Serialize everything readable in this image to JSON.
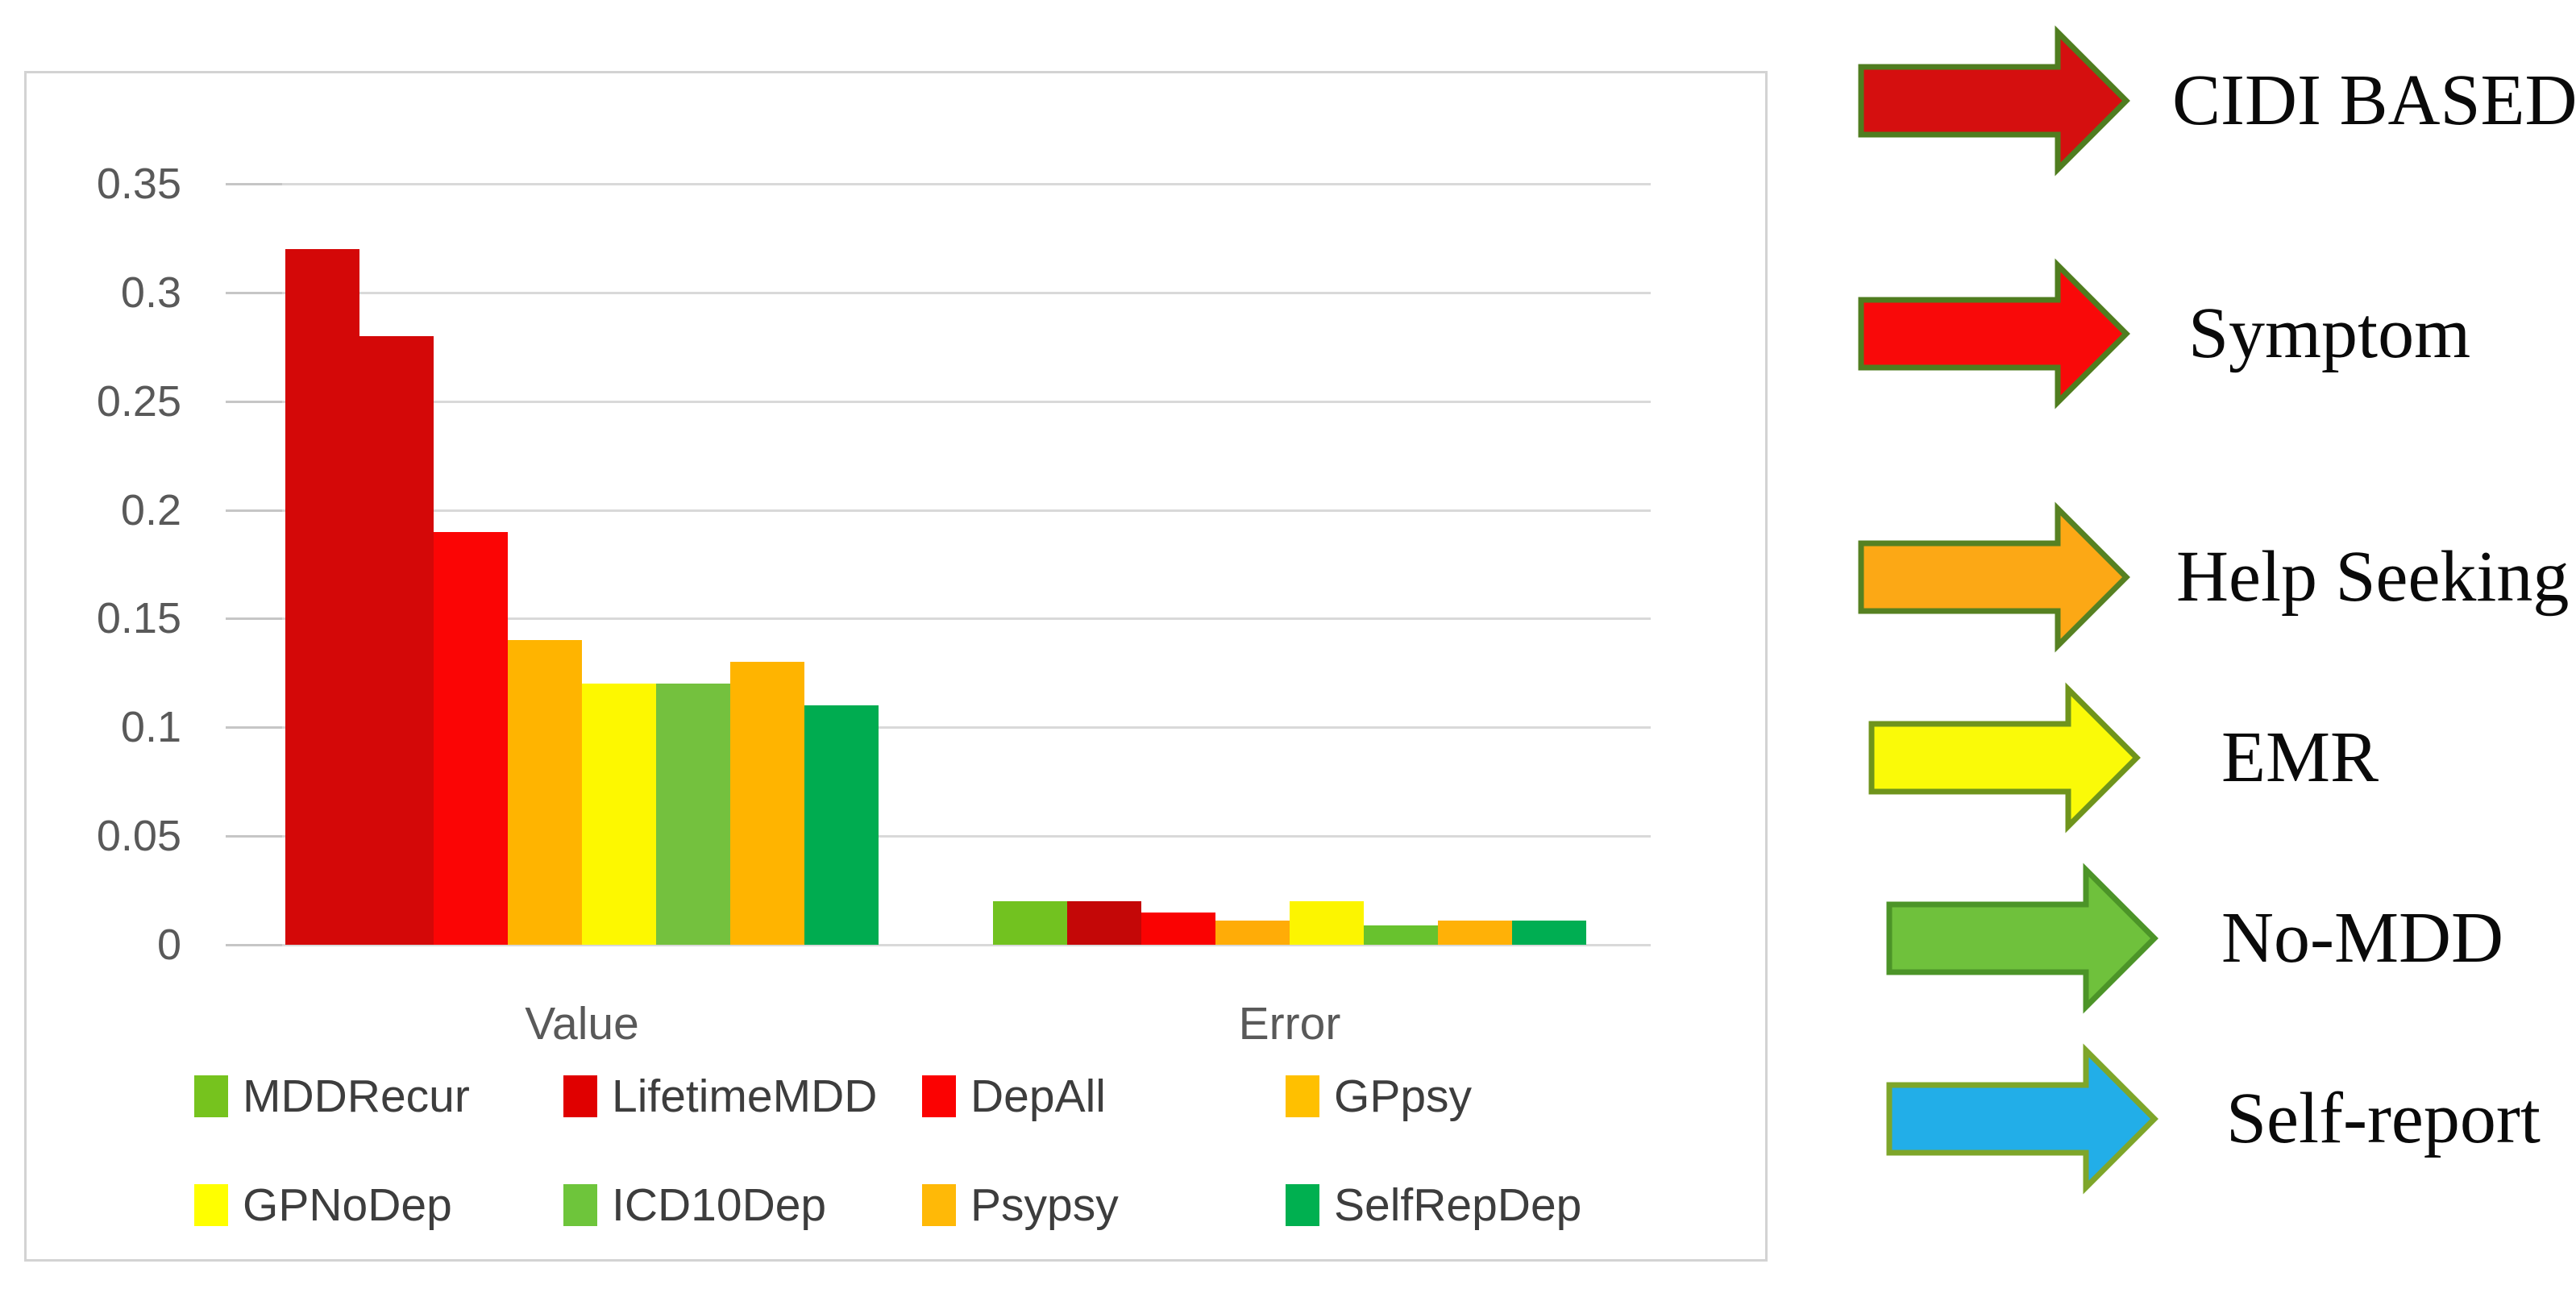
{
  "chart_data": {
    "type": "bar",
    "title": "",
    "xlabel": "",
    "ylabel": "",
    "categories": [
      "Value",
      "Error"
    ],
    "series": [
      {
        "name": "MDDRecur",
        "values": [
          0.32,
          0.02
        ],
        "value_bar_color": "#D40808",
        "error_bar_color": "#72C220",
        "legend_color": "#76C31E"
      },
      {
        "name": "LifetimeMDD",
        "values": [
          0.28,
          0.02
        ],
        "value_bar_color": "#D40808",
        "error_bar_color": "#C40707",
        "legend_color": "#E00000"
      },
      {
        "name": "DepAll",
        "values": [
          0.19,
          0.015
        ],
        "value_bar_color": "#FB0505",
        "error_bar_color": "#FA0202",
        "legend_color": "#FB0202"
      },
      {
        "name": "GPpsy",
        "values": [
          0.14,
          0.011
        ],
        "value_bar_color": "#FFB400",
        "error_bar_color": "#FFAC07",
        "legend_color": "#FFC000"
      },
      {
        "name": "GPNoDep",
        "values": [
          0.12,
          0.02
        ],
        "value_bar_color": "#FDF800",
        "error_bar_color": "#FCF500",
        "legend_color": "#FFFF00"
      },
      {
        "name": "ICD10Dep",
        "values": [
          0.12,
          0.009
        ],
        "value_bar_color": "#74C13E",
        "error_bar_color": "#68C22E",
        "legend_color": "#6EC53B"
      },
      {
        "name": "Psypsy",
        "values": [
          0.13,
          0.011
        ],
        "value_bar_color": "#FFB400",
        "error_bar_color": "#FFB107",
        "legend_color": "#FFB907"
      },
      {
        "name": "SelfRepDep",
        "values": [
          0.11,
          0.011
        ],
        "value_bar_color": "#00AC50",
        "error_bar_color": "#00AE52",
        "legend_color": "#00B050"
      }
    ],
    "ylim": [
      0,
      0.35
    ],
    "yticks": [
      {
        "value": 0.35,
        "label": "0.35"
      },
      {
        "value": 0.3,
        "label": "0.3"
      },
      {
        "value": 0.25,
        "label": "0.25"
      },
      {
        "value": 0.2,
        "label": "0.2"
      },
      {
        "value": 0.15,
        "label": "0.15"
      },
      {
        "value": 0.1,
        "label": "0.1"
      },
      {
        "value": 0.05,
        "label": "0.05"
      },
      {
        "value": 0.0,
        "label": "0"
      }
    ],
    "grid": true,
    "legend_position": "bottom",
    "legend_rows": [
      [
        "MDDRecur",
        "LifetimeMDD",
        "DepAll",
        "GPpsy"
      ],
      [
        "GPNoDep",
        "ICD10Dep",
        "Psypsy",
        "SelfRepDep"
      ]
    ]
  },
  "arrow_legend": {
    "items": [
      {
        "label": "CIDI BASED",
        "fill": "#D50F0F",
        "stroke": "#4F7D1F"
      },
      {
        "label": "Symptom",
        "fill": "#F90909",
        "stroke": "#4F7D1F"
      },
      {
        "label": "Help Seeking",
        "fill": "#FCA815",
        "stroke": "#568122"
      },
      {
        "label": "EMR",
        "fill": "#FAFA08",
        "stroke": "#6F941C"
      },
      {
        "label": "No-MDD",
        "fill": "#6FC13C",
        "stroke": "#4C9428"
      },
      {
        "label": "Self-report",
        "fill": "#22AEE8",
        "stroke": "#7EA62A"
      }
    ]
  },
  "colors": {
    "background": "#FFFFFF",
    "chart_border": "#D3D3D3",
    "gridline": "#D9D9D9",
    "tick_stub": "#C6C6C6",
    "axis_text": "#595959",
    "legend_text": "#3D3D3D",
    "arrow_label_text": "#0A0A0A"
  }
}
